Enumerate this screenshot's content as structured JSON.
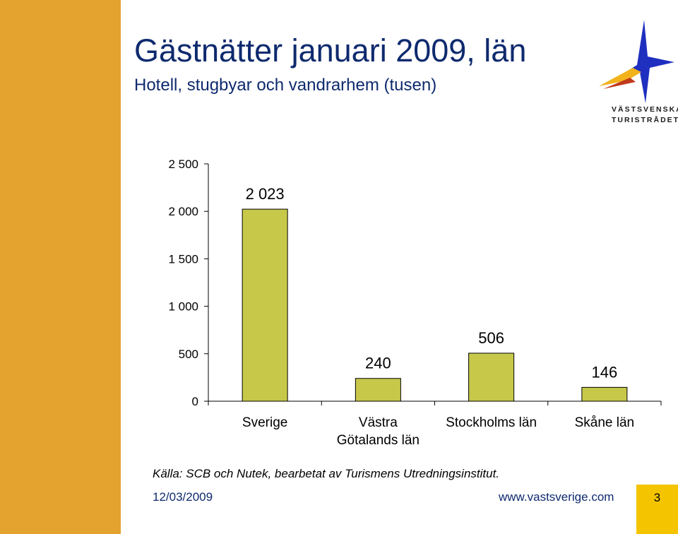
{
  "slide": {
    "title": "Gästnätter januari 2009, län",
    "subtitle": "Hotell, stugbyar och vandrarhem (tusen)",
    "source": "Källa: SCB och Nutek, bearbetat av Turismens Utredningsinstitut.",
    "footer_date": "12/03/2009",
    "footer_site": "www.vastsverige.com",
    "page_number": "3"
  },
  "logo": {
    "line1": "VÄSTSVENSKA",
    "line2": "TURISTRÅDET",
    "icon": "star-logo-icon"
  },
  "colors": {
    "sidebar": "#e4a22f",
    "bar_fill": "#c7c84a",
    "title_text": "#0e2a6e",
    "page_box": "#f5c400"
  },
  "chart_data": {
    "type": "bar",
    "categories": [
      "Sverige",
      "Västra Götalands län",
      "Stockholms län",
      "Skåne län"
    ],
    "category_lines": [
      [
        "Sverige"
      ],
      [
        "Västra",
        "Götalands län"
      ],
      [
        "Stockholms län"
      ],
      [
        "Skåne län"
      ]
    ],
    "values": [
      2023,
      240,
      506,
      146
    ],
    "value_labels": [
      "2 023",
      "240",
      "506",
      "146"
    ],
    "ylim": [
      0,
      2500
    ],
    "yticks": [
      0,
      500,
      1000,
      1500,
      2000,
      2500
    ],
    "ytick_labels": [
      "0",
      "500",
      "1 000",
      "1 500",
      "2 000",
      "2 500"
    ],
    "title": "",
    "xlabel": "",
    "ylabel": "",
    "grid": false,
    "legend": "none"
  }
}
